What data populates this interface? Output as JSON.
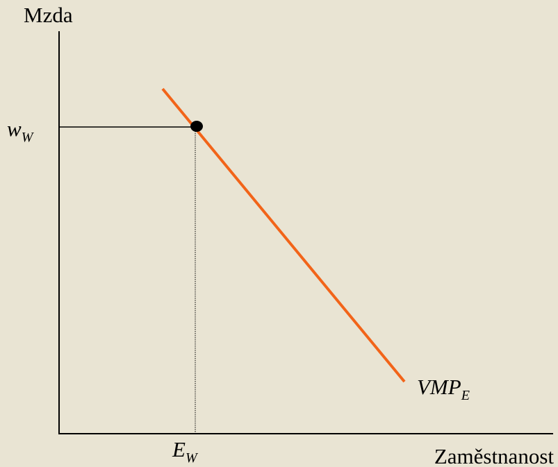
{
  "y_axis_label": "Mzda",
  "x_axis_label": "Zaměstnanost",
  "wage_label": {
    "main": "w",
    "sub": "W"
  },
  "employment_label": {
    "main": "E",
    "sub": "W"
  },
  "curve_label": {
    "main": "VMP",
    "sub": "E"
  }
}
